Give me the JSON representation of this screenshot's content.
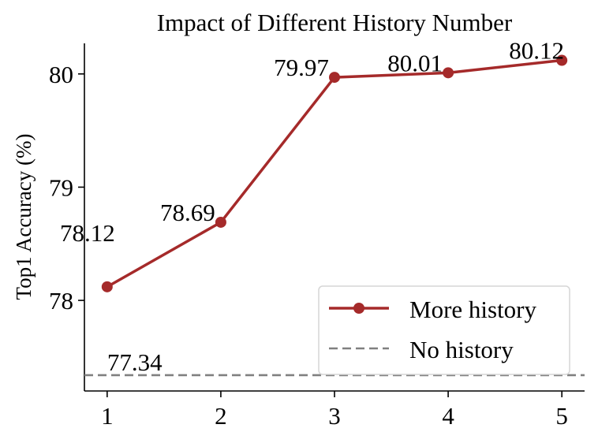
{
  "chart_data": {
    "type": "line",
    "title": "Impact of Different History Number",
    "xlabel": "",
    "ylabel": "Top1 Accuracy (%)",
    "x": [
      1,
      2,
      3,
      4,
      5
    ],
    "x_tick_labels": [
      "1",
      "2",
      "3",
      "4",
      "5"
    ],
    "y_tick_values": [
      78,
      79,
      80
    ],
    "y_tick_labels": [
      "78",
      "79",
      "80"
    ],
    "ylim": [
      77.2,
      80.27
    ],
    "xlim": [
      0.8,
      5.2
    ],
    "grid": false,
    "legend_position": "lower-right",
    "series": [
      {
        "name": "More history",
        "values": [
          78.12,
          78.69,
          79.97,
          80.01,
          80.12
        ],
        "data_labels": [
          "78.12",
          "78.69",
          "79.97",
          "80.01",
          "80.12"
        ],
        "color": "#a52a2a",
        "style": "solid",
        "marker": "circle"
      }
    ],
    "baseline": {
      "name": "No history",
      "value": 77.34,
      "data_label": "77.34",
      "color": "#808080",
      "style": "dashed"
    }
  }
}
